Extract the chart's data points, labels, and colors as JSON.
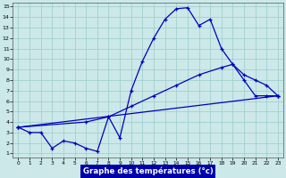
{
  "xlabel": "Graphe des températures (°c)",
  "bg_color": "#cce8e8",
  "grid_color": "#99cccc",
  "line_color": "#0000bb",
  "xlim_min": -0.5,
  "xlim_max": 23.5,
  "ylim_min": 0.6,
  "ylim_max": 15.4,
  "xticks": [
    0,
    1,
    2,
    3,
    4,
    5,
    6,
    7,
    8,
    9,
    10,
    11,
    12,
    13,
    14,
    15,
    16,
    17,
    18,
    19,
    20,
    21,
    22,
    23
  ],
  "yticks": [
    1,
    2,
    3,
    4,
    5,
    6,
    7,
    8,
    9,
    10,
    11,
    12,
    13,
    14,
    15
  ],
  "curve1_x": [
    0,
    1,
    2,
    3,
    4,
    5,
    6,
    7,
    8,
    9,
    10,
    11,
    12,
    13,
    14,
    15,
    16,
    17,
    18,
    19,
    20,
    21,
    22,
    23
  ],
  "curve1_y": [
    3.5,
    3.0,
    3.0,
    1.5,
    2.2,
    2.0,
    1.5,
    1.2,
    4.5,
    2.5,
    7.0,
    9.8,
    12.0,
    13.8,
    14.8,
    14.9,
    13.2,
    13.8,
    11.0,
    9.5,
    8.0,
    6.5,
    6.5,
    6.5
  ],
  "curve2_x": [
    0,
    6,
    8,
    10,
    12,
    14,
    16,
    18,
    19,
    20,
    21,
    22,
    23
  ],
  "curve2_y": [
    3.5,
    4.0,
    4.5,
    5.5,
    6.5,
    7.5,
    8.5,
    9.2,
    9.5,
    8.5,
    8.0,
    7.5,
    6.5
  ],
  "curve3_x": [
    0,
    23
  ],
  "curve3_y": [
    3.5,
    6.5
  ]
}
